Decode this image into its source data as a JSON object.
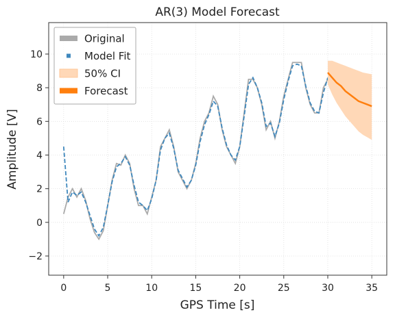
{
  "chart_data": {
    "type": "line",
    "title": "AR(3) Model Forecast",
    "xlabel": "GPS Time [s]",
    "ylabel": "Amplitude [V]",
    "xlim": [
      -1.7,
      36.7
    ],
    "ylim": [
      -3.14,
      11.87
    ],
    "xticks": [
      0,
      5,
      10,
      15,
      20,
      25,
      30,
      35
    ],
    "yticks": [
      {
        "value": -2,
        "label": "−2"
      },
      0,
      2,
      4,
      6,
      8,
      10
    ],
    "grid": true,
    "legend": "upper left",
    "series": [
      {
        "name": "Original",
        "color": "#aaaaaa",
        "style": "solid",
        "x": [
          0,
          0.5,
          1,
          1.5,
          2,
          2.5,
          3,
          3.5,
          4,
          4.5,
          5,
          5.5,
          6,
          6.5,
          7,
          7.5,
          8,
          8.5,
          9,
          9.5,
          10,
          10.5,
          11,
          11.5,
          12,
          12.5,
          13,
          13.5,
          14,
          14.5,
          15,
          15.5,
          16,
          16.5,
          17,
          17.5,
          18,
          18.5,
          19,
          19.5,
          20,
          20.5,
          21,
          21.5,
          22,
          22.5,
          23,
          23.5,
          24,
          24.5,
          25,
          25.5,
          26,
          26.5,
          27,
          27.5,
          28,
          28.5,
          29,
          29.5,
          30
        ],
        "values": [
          0.5,
          1.5,
          2.0,
          1.5,
          2.0,
          1.3,
          0.2,
          -0.6,
          -1.0,
          -0.5,
          1.0,
          2.5,
          3.5,
          3.4,
          4.0,
          3.5,
          2.0,
          1.0,
          1.0,
          0.5,
          1.5,
          2.5,
          4.5,
          5.0,
          5.5,
          4.5,
          3.0,
          2.5,
          2.0,
          2.5,
          3.5,
          5.0,
          6.0,
          6.5,
          7.5,
          7.0,
          5.5,
          4.5,
          4.0,
          3.5,
          4.5,
          6.5,
          8.5,
          8.5,
          8.0,
          7.0,
          5.5,
          6.0,
          5.0,
          6.0,
          7.5,
          8.5,
          9.5,
          9.5,
          9.5,
          8.0,
          7.0,
          6.5,
          6.5,
          8.0,
          8.5
        ]
      },
      {
        "name": "Model Fit",
        "color": "#3f88bd",
        "style": "dashed",
        "x": [
          0,
          0.5,
          1,
          1.5,
          2,
          2.5,
          3,
          3.5,
          4,
          4.5,
          5,
          5.5,
          6,
          6.5,
          7,
          7.5,
          8,
          8.5,
          9,
          9.5,
          10,
          10.5,
          11,
          11.5,
          12,
          12.5,
          13,
          13.5,
          14,
          14.5,
          15,
          15.5,
          16,
          16.5,
          17,
          17.5,
          18,
          18.5,
          19,
          19.5,
          20,
          20.5,
          21,
          21.5,
          22,
          22.5,
          23,
          23.5,
          24,
          24.5,
          25,
          25.5,
          26,
          26.5,
          27,
          27.5,
          28,
          28.5,
          29,
          29.5,
          30
        ],
        "values": [
          4.5,
          1.2,
          1.8,
          1.6,
          1.8,
          1.2,
          0.4,
          -0.4,
          -0.8,
          -0.3,
          1.0,
          2.4,
          3.3,
          3.5,
          3.9,
          3.4,
          2.2,
          1.2,
          1.0,
          0.7,
          1.4,
          2.5,
          4.3,
          5.0,
          5.3,
          4.4,
          3.1,
          2.6,
          2.1,
          2.5,
          3.4,
          4.8,
          5.8,
          6.4,
          7.2,
          6.9,
          5.6,
          4.6,
          4.0,
          3.7,
          4.5,
          6.3,
          8.2,
          8.6,
          8.0,
          7.1,
          5.7,
          5.9,
          5.1,
          5.9,
          7.3,
          8.4,
          9.3,
          9.4,
          9.3,
          8.1,
          7.1,
          6.6,
          6.5,
          7.7,
          8.6
        ]
      },
      {
        "name": "50% CI",
        "color": "#ffd8b7",
        "style": "band",
        "x": [
          30,
          30.5,
          31,
          31.5,
          32,
          32.5,
          33,
          33.5,
          34,
          34.5,
          35
        ],
        "upper": [
          9.6,
          9.6,
          9.5,
          9.4,
          9.3,
          9.2,
          9.1,
          9.0,
          8.9,
          8.85,
          8.8
        ],
        "lower": [
          8.2,
          7.6,
          7.1,
          6.7,
          6.3,
          6.0,
          5.7,
          5.4,
          5.2,
          5.05,
          4.9
        ]
      },
      {
        "name": "Forecast",
        "color": "#ff7f0e",
        "style": "solid",
        "x": [
          30,
          30.5,
          31,
          31.5,
          32,
          32.5,
          33,
          33.5,
          34,
          34.5,
          35
        ],
        "values": [
          8.9,
          8.6,
          8.3,
          8.1,
          7.8,
          7.6,
          7.4,
          7.2,
          7.1,
          7.0,
          6.9
        ]
      }
    ]
  }
}
